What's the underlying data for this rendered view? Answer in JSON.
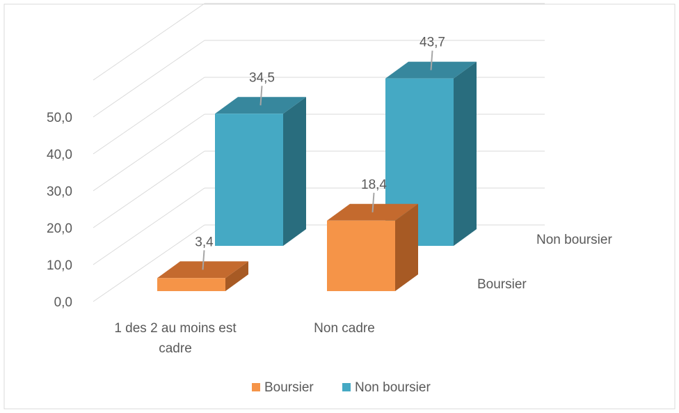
{
  "chart_data": {
    "type": "bar",
    "style": "3d-clustered-column",
    "categories": [
      "1 des 2 au moins est cadre",
      "Non cadre"
    ],
    "series": [
      {
        "name": "Boursier",
        "values": [
          3.4,
          18.4
        ],
        "color": "#F59448",
        "top_color": "#C46A2E",
        "side_color": "#A75A24"
      },
      {
        "name": "Non boursier",
        "values": [
          34.5,
          43.7
        ],
        "color": "#45A9C4",
        "top_color": "#37879D",
        "side_color": "#296D7E"
      }
    ],
    "data_labels": [
      [
        "3,4",
        "18,4"
      ],
      [
        "34,5",
        "43,7"
      ]
    ],
    "category_labels": [
      [
        "1 des 2 au moins est",
        "cadre"
      ],
      [
        "Non cadre"
      ]
    ],
    "depth_labels": [
      "Boursier",
      "Non boursier"
    ],
    "yticks": [
      "0,0",
      "10,0",
      "20,0",
      "30,0",
      "40,0",
      "50,0"
    ],
    "ylim": [
      0,
      50
    ],
    "legend": {
      "position": "bottom",
      "items": [
        "Boursier",
        "Non boursier"
      ]
    },
    "grid": true,
    "title": "",
    "xlabel": "",
    "ylabel": ""
  }
}
